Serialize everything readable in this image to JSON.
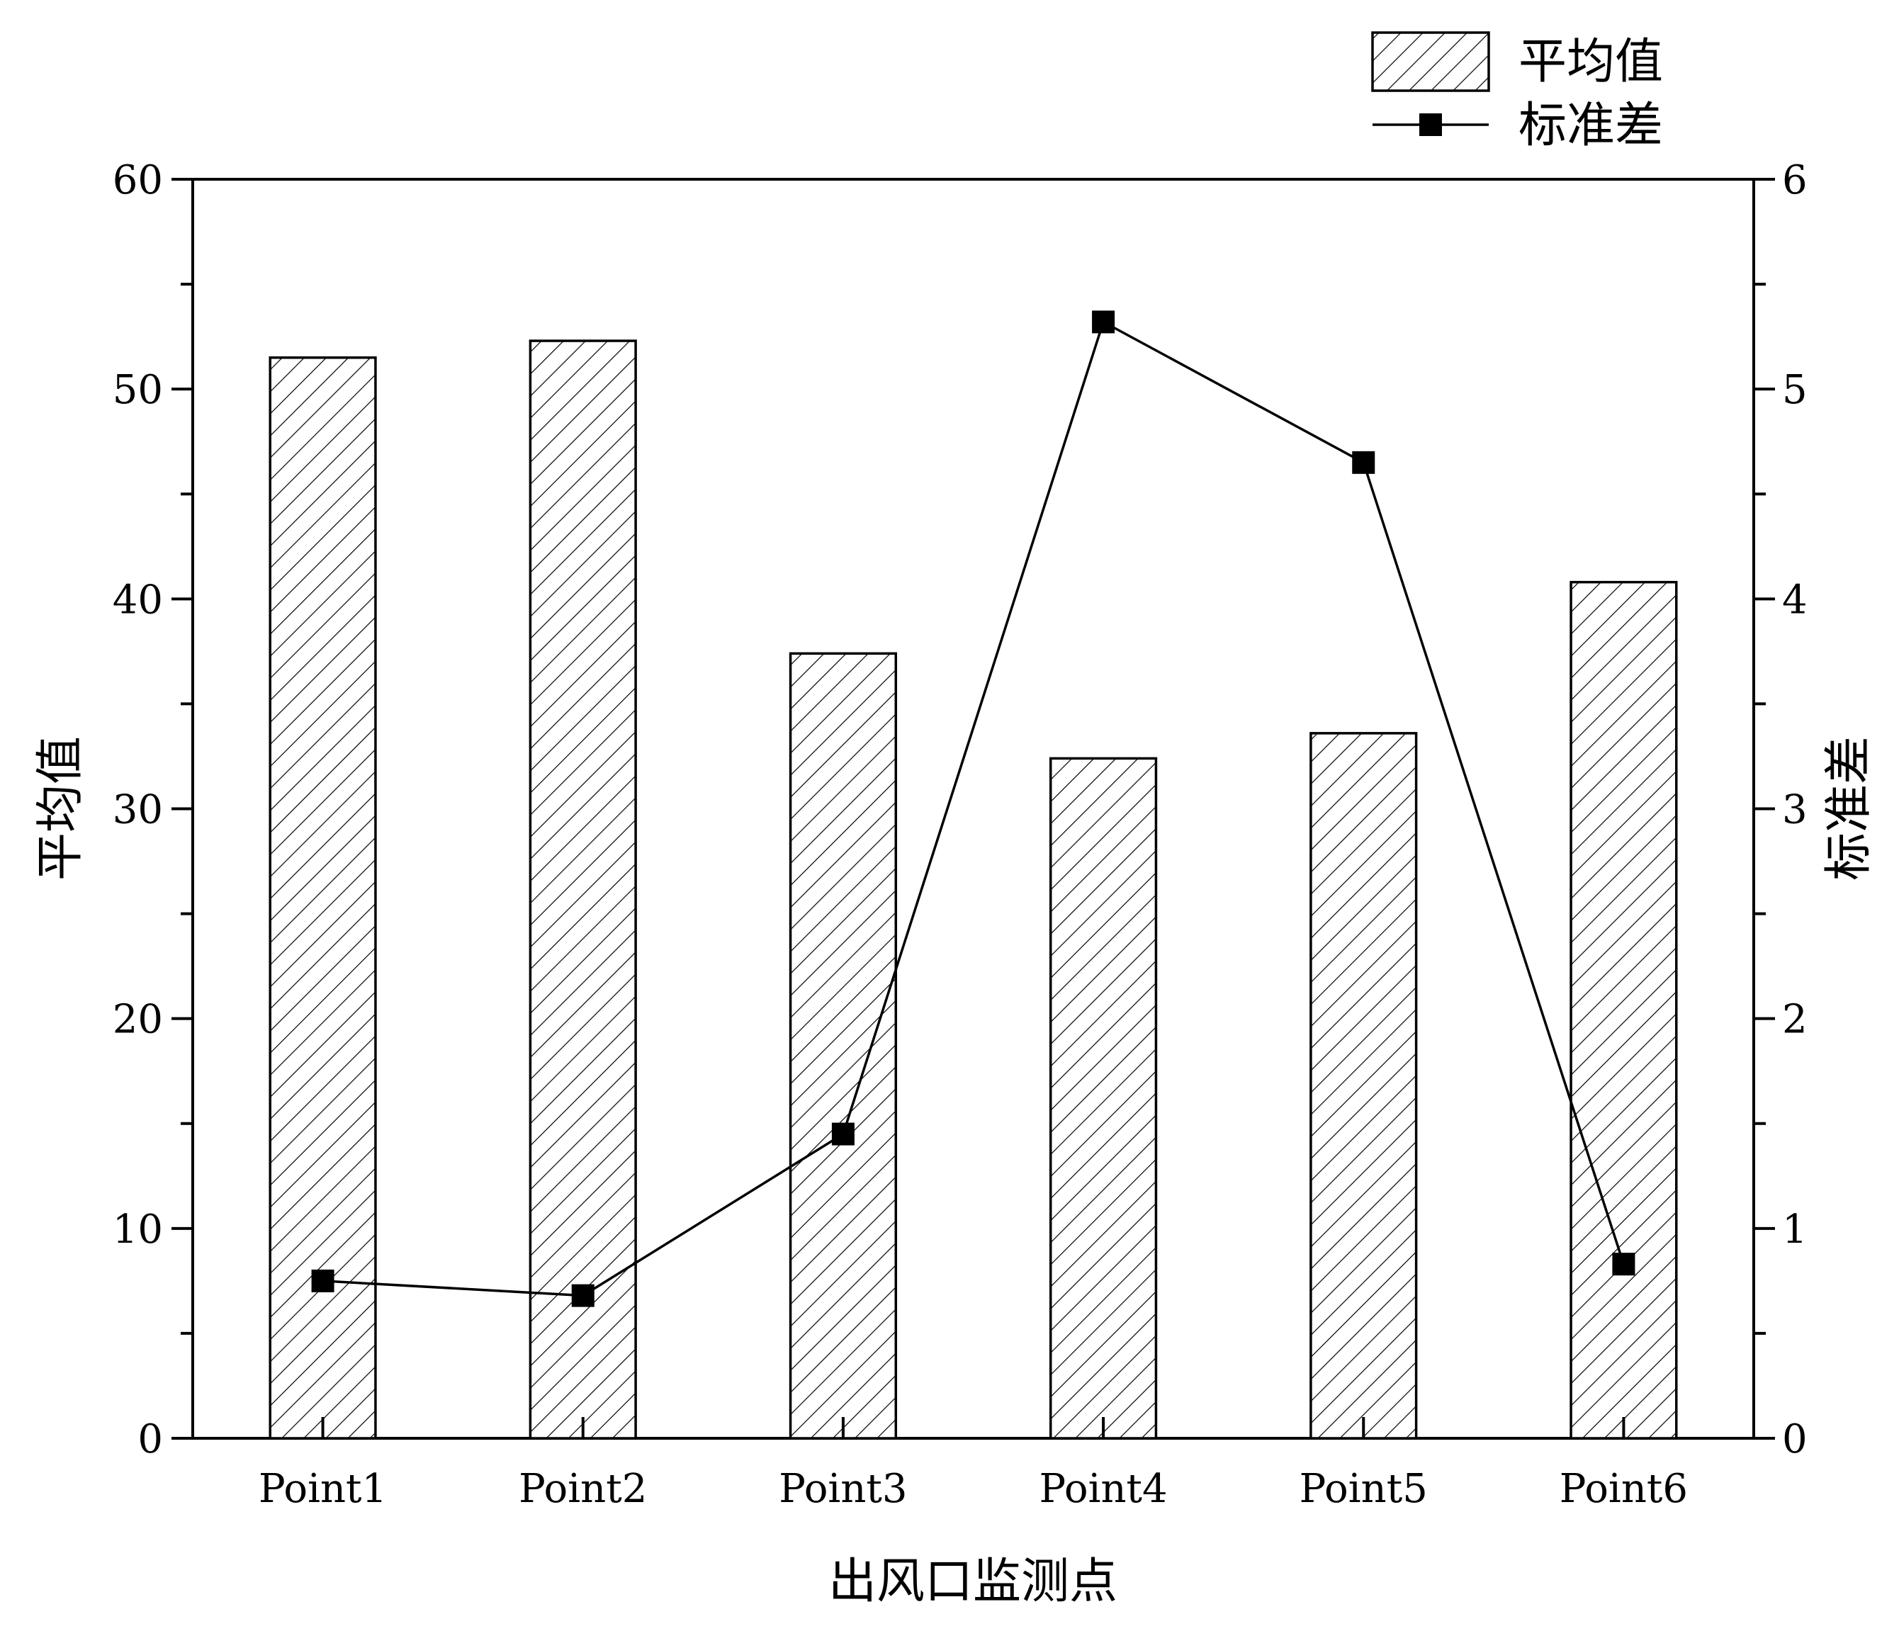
{
  "chart_data": {
    "type": "bar",
    "title": "",
    "xlabel": "出风口监测点",
    "ylabel": "平均值",
    "y2label": "标准差",
    "categories": [
      "Point1",
      "Point2",
      "Point3",
      "Point4",
      "Point5",
      "Point6"
    ],
    "ylim": [
      0,
      60
    ],
    "y2lim": [
      0,
      6
    ],
    "yticks": [
      "0",
      "10",
      "20",
      "30",
      "40",
      "50",
      "60"
    ],
    "y2ticks": [
      "0",
      "1",
      "2",
      "3",
      "4",
      "5",
      "6"
    ],
    "grid": false,
    "legend_position": "top-right",
    "series": [
      {
        "name": "平均值",
        "type": "bar",
        "axis": "left",
        "pattern": "diagonal-hatch",
        "values": [
          51.5,
          52.3,
          37.4,
          32.4,
          33.6,
          40.8
        ]
      },
      {
        "name": "标准差",
        "type": "line",
        "axis": "right",
        "marker": "square",
        "values": [
          0.75,
          0.68,
          1.45,
          5.32,
          4.65,
          0.83
        ]
      }
    ],
    "colors": {
      "stroke": "#000000",
      "fill": "#ffffff"
    }
  }
}
